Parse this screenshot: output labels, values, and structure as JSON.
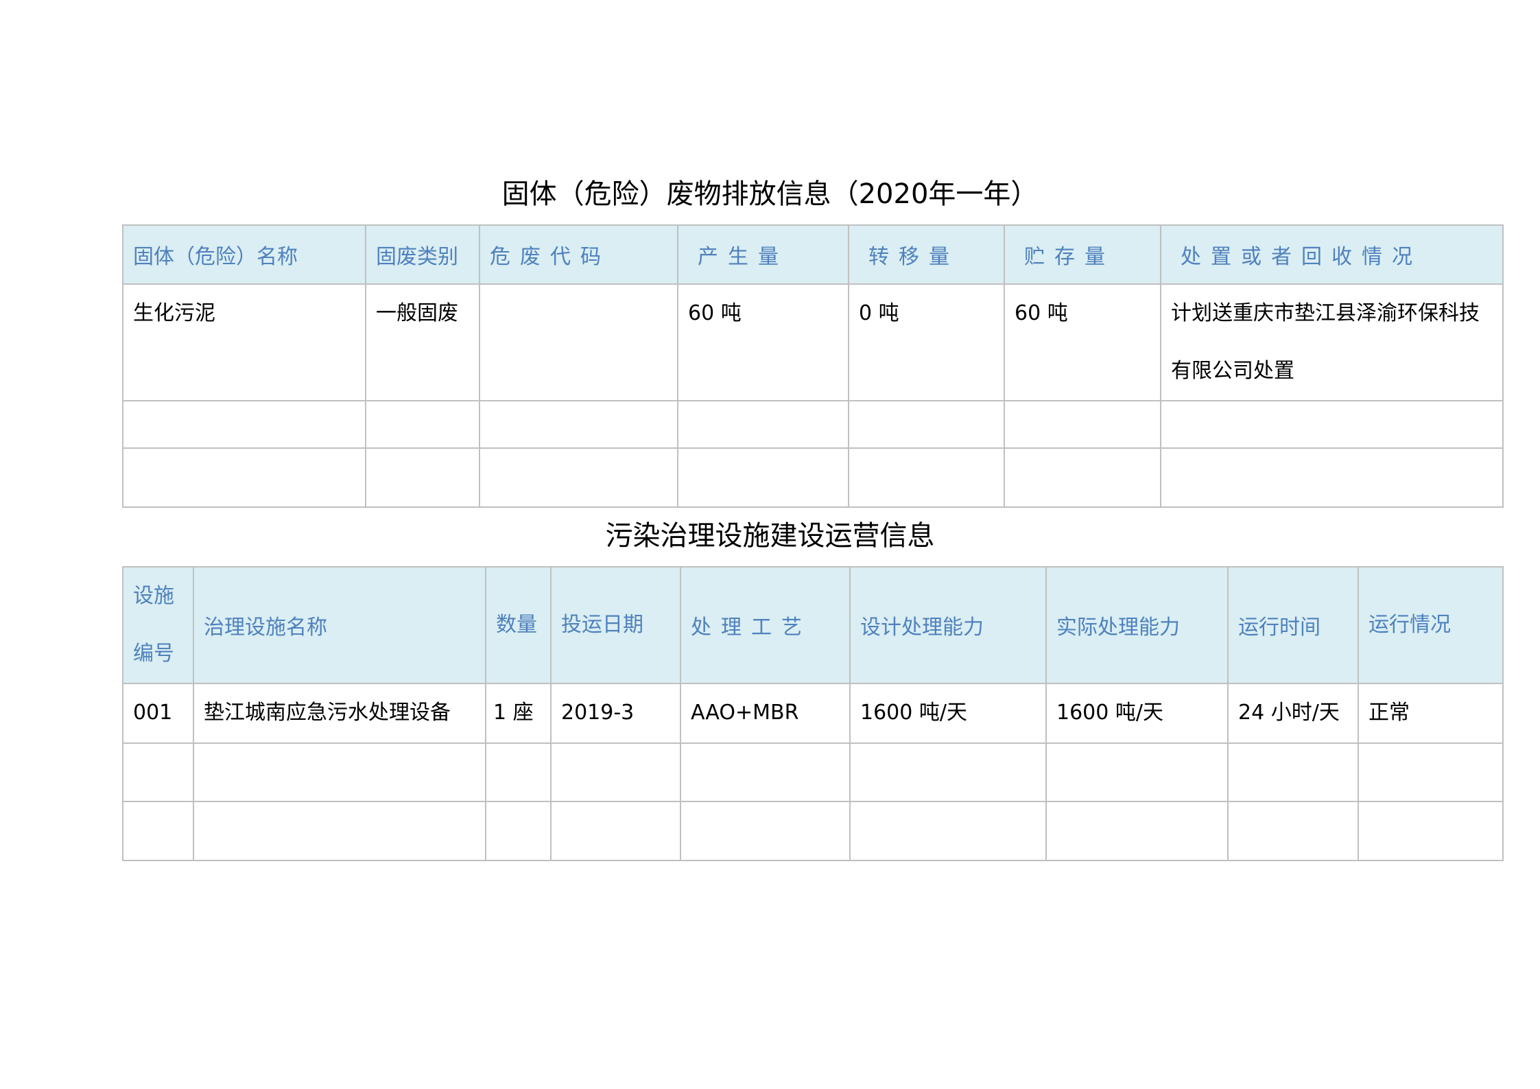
{
  "section1": {
    "title": "固体（危险）废物排放信息（2020年一年）",
    "headers": [
      "固体（危险）名称",
      "固废类别",
      "危废代码",
      "产生量",
      "转移量",
      "贮存量",
      "处置或者回收情况"
    ],
    "rows": [
      [
        "生化污泥",
        "一般固废",
        "",
        "60 吨",
        "0 吨",
        "60 吨",
        "计划送重庆市垫江县泽渝环保科技有限公司处置"
      ],
      [
        "",
        "",
        "",
        "",
        "",
        "",
        ""
      ],
      [
        "",
        "",
        "",
        "",
        "",
        "",
        ""
      ]
    ]
  },
  "section2": {
    "title": "污染治理设施建设运营信息",
    "headers": [
      "设施编号",
      "治理设施名称",
      "数量",
      "投运日期",
      "处理工艺",
      "设计处理能力",
      "实际处理能力",
      "运行时间",
      "运行情况"
    ],
    "rows": [
      [
        "001",
        "垫江城南应急污水处理设备",
        "1 座",
        "2019-3",
        "AAO+MBR",
        "1600 吨/天",
        "1600 吨/天",
        "24 小时/天",
        "正常"
      ],
      [
        "",
        "",
        "",
        "",
        "",
        "",
        "",
        "",
        ""
      ],
      [
        "",
        "",
        "",
        "",
        "",
        "",
        "",
        "",
        ""
      ]
    ]
  },
  "colors": {
    "header_bg": "#daeef3",
    "header_text": "#4f81bd",
    "border": "#c0c0c0"
  }
}
